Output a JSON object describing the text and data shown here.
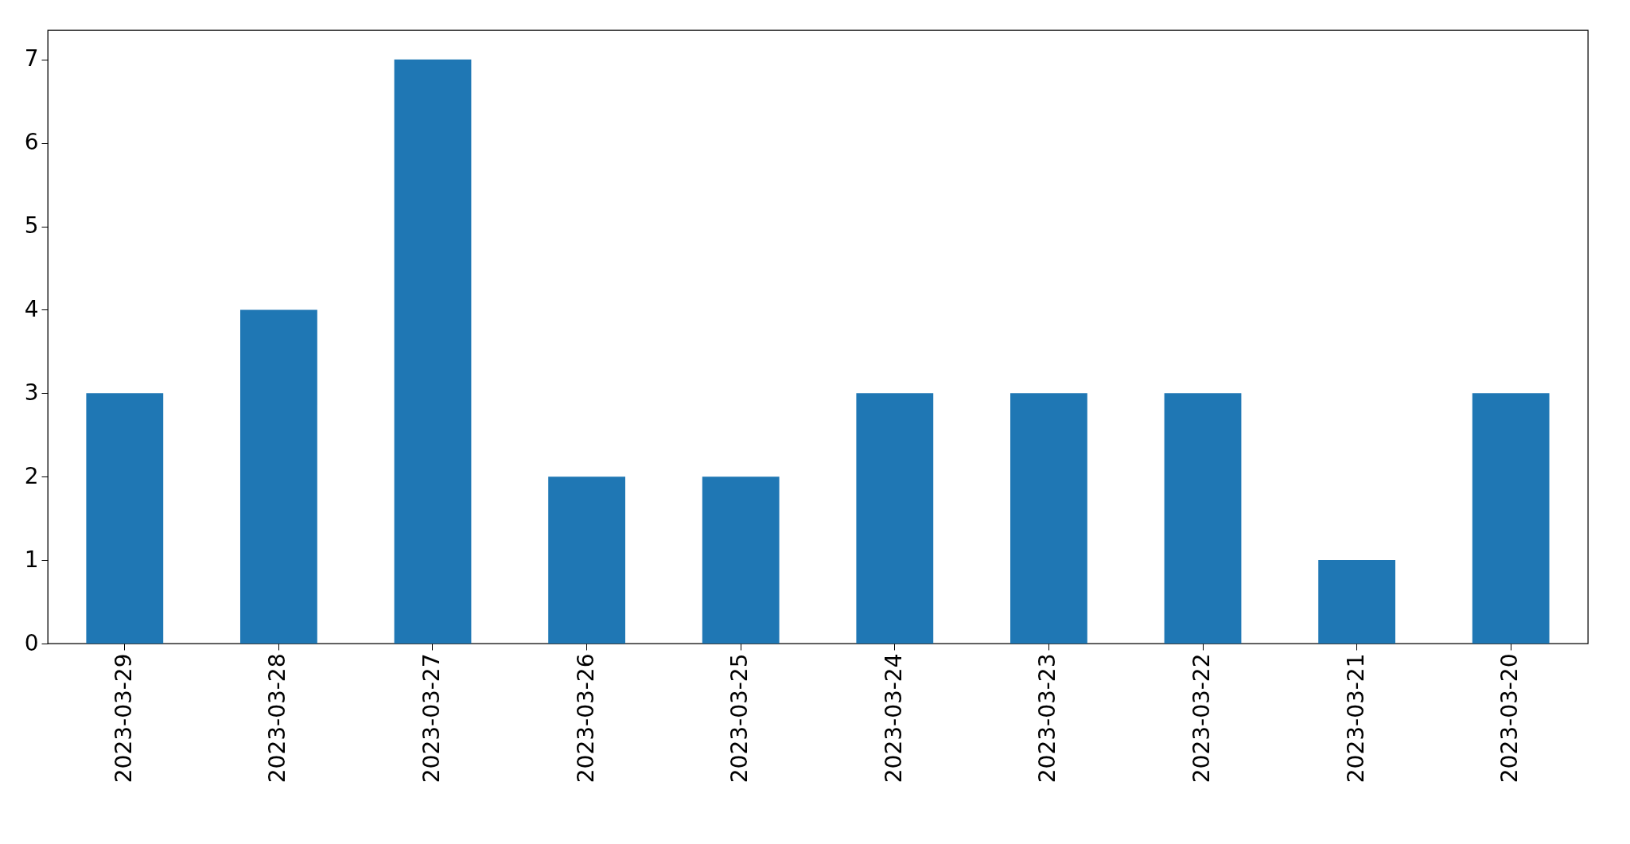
{
  "chart_data": {
    "type": "bar",
    "categories": [
      "2023-03-29",
      "2023-03-28",
      "2023-03-27",
      "2023-03-26",
      "2023-03-25",
      "2023-03-24",
      "2023-03-23",
      "2023-03-22",
      "2023-03-21",
      "2023-03-20"
    ],
    "values": [
      3,
      4,
      7,
      2,
      2,
      3,
      3,
      3,
      1,
      3
    ],
    "color": "#1f77b4",
    "ylim": [
      0,
      7.35
    ],
    "yticks": [
      0,
      1,
      2,
      3,
      4,
      5,
      6,
      7
    ],
    "grid": false
  }
}
